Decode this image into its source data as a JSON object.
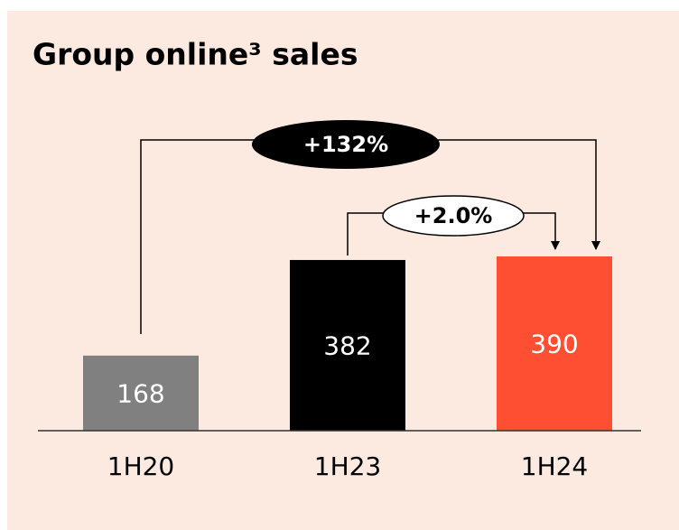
{
  "chart_data": {
    "type": "bar",
    "title": "Group online³ sales",
    "categories": [
      "1H20",
      "1H23",
      "1H24"
    ],
    "values": [
      168,
      382,
      390
    ],
    "colors": [
      "#808080",
      "#000000",
      "#ff4f33"
    ],
    "annotations": [
      "+132%",
      "+2.0%"
    ]
  }
}
